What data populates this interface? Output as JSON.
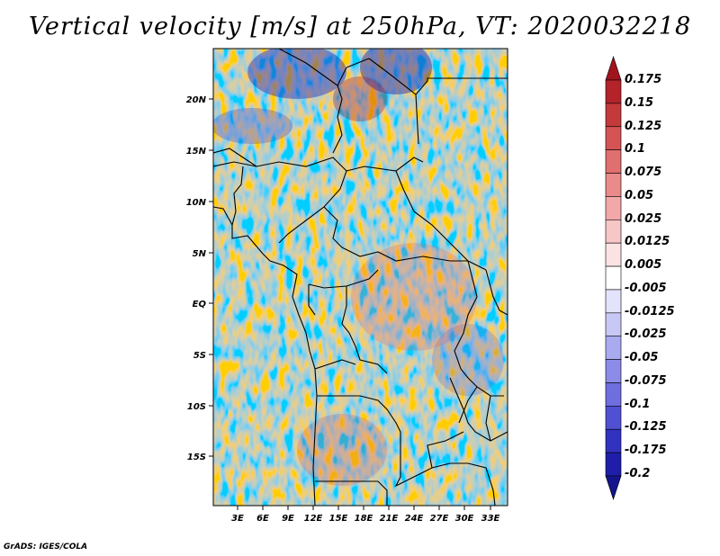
{
  "title": "Vertical velocity [m/s] at 250hPa, VT: 2020032218",
  "credit": "GrADS: IGES/COLA",
  "map": {
    "variable": "Vertical velocity",
    "units": "m/s",
    "level": "250hPa",
    "valid_time": "2020032218",
    "lat_labels": [
      "20N",
      "15N",
      "10N",
      "5N",
      "EQ",
      "5S",
      "10S",
      "15S"
    ],
    "lon_labels": [
      "3E",
      "6E",
      "9E",
      "12E",
      "15E",
      "18E",
      "21E",
      "24E",
      "27E",
      "30E",
      "33E"
    ]
  },
  "colorbar": {
    "levels": [
      "0.175",
      "0.15",
      "0.125",
      "0.1",
      "0.075",
      "0.05",
      "0.025",
      "0.0125",
      "0.005",
      "-0.005",
      "-0.0125",
      "-0.025",
      "-0.05",
      "-0.075",
      "-0.1",
      "-0.125",
      "-0.175",
      "-0.2"
    ],
    "colors": [
      "#a0141e",
      "#b4232a",
      "#c43a3a",
      "#d45454",
      "#e06f6f",
      "#ea8a8a",
      "#f2a8a8",
      "#f7c6c6",
      "#fbe3e3",
      "#ffffff",
      "#e3e3fb",
      "#c8c8f5",
      "#aaaaf0",
      "#8c8ce8",
      "#6e6ede",
      "#5050d2",
      "#3232c0",
      "#1e1eaa",
      "#14148c"
    ]
  }
}
